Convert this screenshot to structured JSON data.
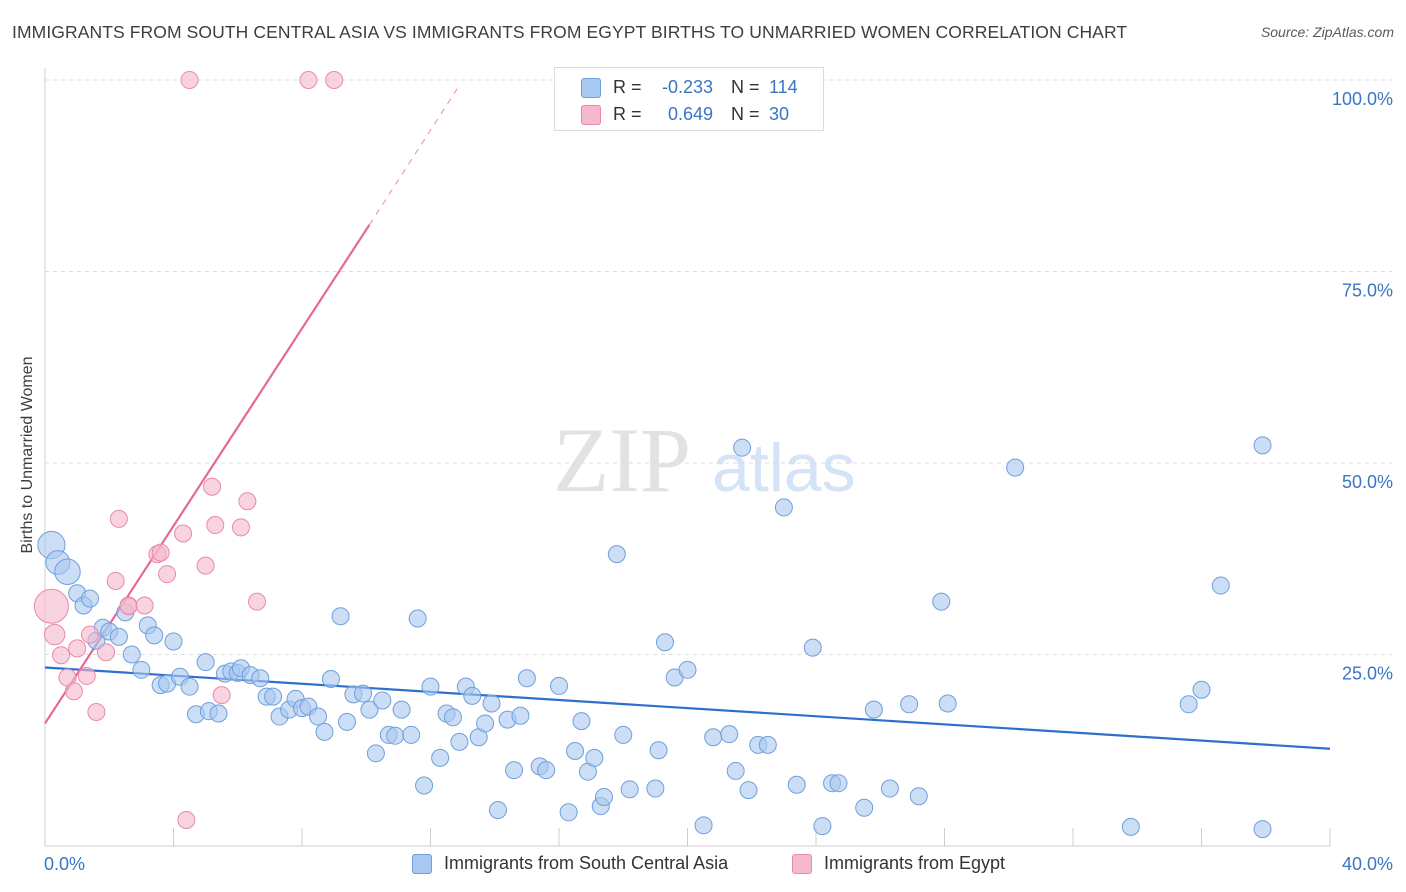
{
  "title": "IMMIGRANTS FROM SOUTH CENTRAL ASIA VS IMMIGRANTS FROM EGYPT BIRTHS TO UNMARRIED WOMEN CORRELATION CHART",
  "source": "Source: ZipAtlas.com",
  "watermark": {
    "zip": "ZIP",
    "atlas": "atlas"
  },
  "legend": {
    "rows": [
      {
        "r_label": "R =",
        "r_value": "-0.233",
        "n_label": "N =",
        "n_value": "114",
        "color": "#a8c8f0"
      },
      {
        "r_label": "R =",
        "r_value": "0.649",
        "n_label": "N =",
        "n_value": "30",
        "color": "#f5b8cc"
      }
    ]
  },
  "colors": {
    "blue_fill": "#a8c8f0",
    "blue_stroke": "#6f9fdc",
    "blue_line": "#2f6fcc",
    "pink_fill": "#f5b8cc",
    "pink_stroke": "#e98aa8",
    "pink_line": "#e46a95",
    "tick_text": "#3a75c4",
    "grid": "#dddddd"
  },
  "chart_data": {
    "type": "scatter",
    "title": "IMMIGRANTS FROM SOUTH CENTRAL ASIA VS IMMIGRANTS FROM EGYPT BIRTHS TO UNMARRIED WOMEN CORRELATION CHART",
    "xlabel": "",
    "ylabel": "Births to Unmarried Women",
    "xlim": [
      0,
      40
    ],
    "ylim": [
      0,
      103
    ],
    "x_tick_labels": [
      "0.0%",
      "40.0%"
    ],
    "y_ticks": [
      25,
      50,
      75,
      100
    ],
    "y_tick_labels": [
      "25.0%",
      "50.0%",
      "75.0%",
      "100.0%"
    ],
    "series": [
      {
        "name": "Immigrants from South Central Asia",
        "color": "#a8c8f0",
        "R": -0.233,
        "N": 114,
        "trend": {
          "x": [
            0,
            40
          ],
          "y": [
            23.3,
            12.7
          ]
        },
        "points": [
          [
            0.2,
            39.3,
            1.6
          ],
          [
            0.4,
            37,
            1.4
          ],
          [
            0.7,
            35.8,
            1.5
          ],
          [
            1.0,
            33,
            1
          ],
          [
            1.2,
            31.4,
            1
          ],
          [
            1.4,
            32.3,
            1
          ],
          [
            1.6,
            26.8,
            1
          ],
          [
            1.8,
            28.5,
            1
          ],
          [
            2.0,
            28,
            1
          ],
          [
            2.3,
            27.3,
            1
          ],
          [
            2.5,
            30.5,
            1
          ],
          [
            2.7,
            25,
            1
          ],
          [
            3.0,
            23,
            1
          ],
          [
            3.2,
            28.8,
            1
          ],
          [
            3.4,
            27.5,
            1
          ],
          [
            3.6,
            21,
            1
          ],
          [
            3.8,
            21.2,
            1
          ],
          [
            4.0,
            26.7,
            1
          ],
          [
            4.2,
            22.1,
            1
          ],
          [
            4.5,
            20.8,
            1
          ],
          [
            4.7,
            17.2,
            1
          ],
          [
            5.0,
            24,
            1
          ],
          [
            5.1,
            17.6,
            1
          ],
          [
            5.4,
            17.3,
            1
          ],
          [
            5.6,
            22.5,
            1
          ],
          [
            5.8,
            22.8,
            1
          ],
          [
            6.0,
            22.6,
            1
          ],
          [
            6.1,
            23.2,
            1
          ],
          [
            6.4,
            22.3,
            1
          ],
          [
            6.7,
            21.9,
            1
          ],
          [
            6.9,
            19.5,
            1
          ],
          [
            7.1,
            19.5,
            1
          ],
          [
            7.3,
            16.9,
            1
          ],
          [
            7.6,
            17.8,
            1
          ],
          [
            7.8,
            19.2,
            1
          ],
          [
            8.0,
            18,
            1
          ],
          [
            8.2,
            18.2,
            1
          ],
          [
            8.5,
            16.9,
            1
          ],
          [
            8.7,
            14.9,
            1
          ],
          [
            8.9,
            21.8,
            1
          ],
          [
            9.2,
            30,
            1
          ],
          [
            9.4,
            16.2,
            1
          ],
          [
            9.6,
            19.8,
            1
          ],
          [
            9.9,
            19.9,
            1
          ],
          [
            10.1,
            17.8,
            1
          ],
          [
            10.3,
            12.1,
            1
          ],
          [
            10.5,
            19,
            1
          ],
          [
            10.7,
            14.5,
            1
          ],
          [
            10.9,
            14.4,
            1
          ],
          [
            11.1,
            17.8,
            1
          ],
          [
            11.4,
            14.5,
            1
          ],
          [
            11.6,
            29.7,
            1
          ],
          [
            11.8,
            7.9,
            1
          ],
          [
            12.0,
            20.8,
            1
          ],
          [
            12.3,
            11.5,
            1
          ],
          [
            12.5,
            17.3,
            1
          ],
          [
            12.7,
            16.8,
            1
          ],
          [
            12.9,
            13.6,
            1
          ],
          [
            13.1,
            20.8,
            1
          ],
          [
            13.3,
            19.6,
            1
          ],
          [
            13.5,
            14.2,
            1
          ],
          [
            13.7,
            16,
            1
          ],
          [
            13.9,
            18.6,
            1
          ],
          [
            14.1,
            4.7,
            1
          ],
          [
            14.4,
            16.5,
            1
          ],
          [
            14.6,
            9.9,
            1
          ],
          [
            14.8,
            17,
            1
          ],
          [
            15.0,
            21.9,
            1
          ],
          [
            15.4,
            10.4,
            1
          ],
          [
            15.6,
            9.9,
            1
          ],
          [
            16.0,
            20.9,
            1
          ],
          [
            16.3,
            4.4,
            1
          ],
          [
            16.5,
            12.4,
            1
          ],
          [
            16.7,
            16.3,
            1
          ],
          [
            16.9,
            9.7,
            1
          ],
          [
            17.1,
            11.5,
            1
          ],
          [
            17.3,
            5.2,
            1
          ],
          [
            17.4,
            6.4,
            1
          ],
          [
            17.8,
            38.1,
            1
          ],
          [
            18.0,
            14.5,
            1
          ],
          [
            18.2,
            7.4,
            1
          ],
          [
            19.0,
            7.5,
            1
          ],
          [
            19.1,
            12.5,
            1
          ],
          [
            19.3,
            26.6,
            1
          ],
          [
            19.6,
            22,
            1
          ],
          [
            20.0,
            23,
            1
          ],
          [
            20.5,
            2.7,
            1
          ],
          [
            20.8,
            14.2,
            1
          ],
          [
            21.3,
            14.6,
            1
          ],
          [
            21.5,
            9.8,
            1
          ],
          [
            21.7,
            52,
            1
          ],
          [
            21.9,
            7.3,
            1
          ],
          [
            22.2,
            13.2,
            1
          ],
          [
            22.5,
            13.2,
            1
          ],
          [
            23.0,
            44.2,
            1
          ],
          [
            23.4,
            8,
            1
          ],
          [
            23.9,
            25.9,
            1
          ],
          [
            24.2,
            2.6,
            1
          ],
          [
            24.5,
            8.2,
            1
          ],
          [
            24.7,
            8.2,
            1
          ],
          [
            25.5,
            5,
            1
          ],
          [
            25.8,
            17.8,
            1
          ],
          [
            26.3,
            7.5,
            1
          ],
          [
            26.9,
            18.5,
            1
          ],
          [
            27.2,
            6.5,
            1
          ],
          [
            27.9,
            31.9,
            1
          ],
          [
            28.1,
            18.6,
            1
          ],
          [
            30.2,
            49.4,
            1
          ],
          [
            33.8,
            2.5,
            1
          ],
          [
            35.6,
            18.5,
            1
          ],
          [
            36.0,
            20.4,
            1
          ],
          [
            36.6,
            34,
            1
          ],
          [
            37.9,
            2.2,
            1
          ],
          [
            37.9,
            52.3,
            1
          ]
        ]
      },
      {
        "name": "Immigrants from Egypt",
        "color": "#f5b8cc",
        "R": 0.649,
        "N": 30,
        "trend": {
          "x": [
            0,
            10.1
          ],
          "y": [
            16,
            81.1
          ]
        },
        "trend_dashed": {
          "x": [
            10.1,
            12.9
          ],
          "y": [
            81.1,
            99.3
          ]
        },
        "points": [
          [
            0.2,
            31.3,
            2
          ],
          [
            0.3,
            27.6,
            1.2
          ],
          [
            0.5,
            24.9,
            1
          ],
          [
            0.7,
            22,
            1
          ],
          [
            0.9,
            20.2,
            1
          ],
          [
            1.0,
            25.8,
            1
          ],
          [
            1.3,
            22.2,
            1
          ],
          [
            1.4,
            27.6,
            1
          ],
          [
            1.6,
            17.5,
            1
          ],
          [
            1.9,
            25.3,
            1
          ],
          [
            2.2,
            34.6,
            1
          ],
          [
            2.3,
            42.7,
            1
          ],
          [
            2.6,
            31.4,
            1
          ],
          [
            2.6,
            31.3,
            1
          ],
          [
            3.1,
            31.4,
            1
          ],
          [
            3.5,
            38.1,
            1
          ],
          [
            3.6,
            38.3,
            1
          ],
          [
            3.8,
            35.5,
            1
          ],
          [
            4.4,
            3.4,
            1
          ],
          [
            4.3,
            40.8,
            1
          ],
          [
            4.5,
            100,
            1
          ],
          [
            5.0,
            36.6,
            1
          ],
          [
            5.2,
            46.9,
            1
          ],
          [
            5.3,
            41.9,
            1
          ],
          [
            5.5,
            19.7,
            1
          ],
          [
            6.1,
            41.6,
            1
          ],
          [
            6.3,
            45,
            1
          ],
          [
            6.6,
            31.9,
            1
          ],
          [
            8.2,
            100,
            1
          ],
          [
            9.0,
            100,
            1
          ]
        ]
      }
    ]
  },
  "ylabel": "Births to Unmarried Women",
  "bottom_legend": [
    {
      "label": "Immigrants from South Central Asia",
      "color": "#a8c8f0"
    },
    {
      "label": "Immigrants from Egypt",
      "color": "#f5b8cc"
    }
  ]
}
